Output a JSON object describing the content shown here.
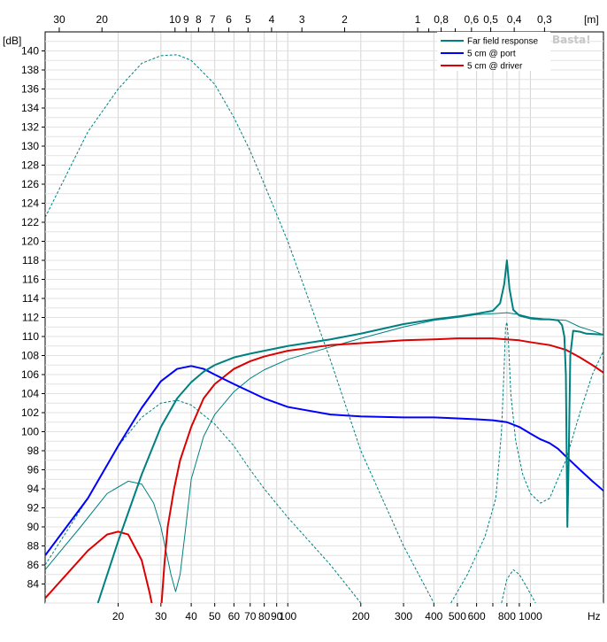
{
  "chart_data": {
    "type": "line",
    "y_unit_label": "[dB]",
    "x_unit_label": "Hz",
    "top_unit_label": "[m]",
    "watermark": "Basta!",
    "xscale": "log",
    "xlim": [
      10,
      2000
    ],
    "ylim": [
      82,
      142
    ],
    "grid": true,
    "legend_placement": "top-right",
    "x_ticks": [
      {
        "v": 20,
        "label": "20"
      },
      {
        "v": 30,
        "label": "30"
      },
      {
        "v": 40,
        "label": "40"
      },
      {
        "v": 50,
        "label": "50"
      },
      {
        "v": 60,
        "label": "60"
      },
      {
        "v": 70,
        "label": "70"
      },
      {
        "v": 80,
        "label": "80"
      },
      {
        "v": 90,
        "label": "90"
      },
      {
        "v": 100,
        "label": "100"
      },
      {
        "v": 200,
        "label": "200"
      },
      {
        "v": 300,
        "label": "300"
      },
      {
        "v": 400,
        "label": "400"
      },
      {
        "v": 500,
        "label": "500"
      },
      {
        "v": 600,
        "label": "600"
      },
      {
        "v": 800,
        "label": "800"
      },
      {
        "v": 1000,
        "label": "1000"
      }
    ],
    "top_ticks": [
      {
        "m": 30,
        "label": "30"
      },
      {
        "m": 20,
        "label": "20"
      },
      {
        "m": 10,
        "label": "10"
      },
      {
        "m": 9,
        "label": "9"
      },
      {
        "m": 8,
        "label": "8"
      },
      {
        "m": 7,
        "label": "7"
      },
      {
        "m": 6,
        "label": "6"
      },
      {
        "m": 5,
        "label": "5"
      },
      {
        "m": 4,
        "label": "4"
      },
      {
        "m": 3,
        "label": "3"
      },
      {
        "m": 2,
        "label": "2"
      },
      {
        "m": 1,
        "label": "1"
      },
      {
        "m": 0.8,
        "label": "0,8"
      },
      {
        "m": 0.6,
        "label": "0,6"
      },
      {
        "m": 0.5,
        "label": "0,5"
      },
      {
        "m": 0.4,
        "label": "0,4"
      },
      {
        "m": 0.3,
        "label": "0,3"
      }
    ],
    "y_ticks": [
      84,
      86,
      88,
      90,
      92,
      94,
      96,
      98,
      100,
      102,
      104,
      106,
      108,
      110,
      112,
      114,
      116,
      118,
      120,
      122,
      124,
      126,
      128,
      130,
      132,
      134,
      136,
      138,
      140
    ],
    "series": [
      {
        "name": "Far field response",
        "color": "#008080",
        "width": 2,
        "legend": true,
        "points": [
          [
            16.5,
            82
          ],
          [
            20,
            88.5
          ],
          [
            25,
            95.5
          ],
          [
            30,
            100.5
          ],
          [
            35,
            103.5
          ],
          [
            40,
            105.2
          ],
          [
            45,
            106.3
          ],
          [
            50,
            107
          ],
          [
            60,
            107.8
          ],
          [
            70,
            108.2
          ],
          [
            80,
            108.5
          ],
          [
            100,
            109
          ],
          [
            150,
            109.7
          ],
          [
            200,
            110.3
          ],
          [
            300,
            111.3
          ],
          [
            400,
            111.8
          ],
          [
            500,
            112.1
          ],
          [
            600,
            112.4
          ],
          [
            700,
            112.7
          ],
          [
            750,
            113.5
          ],
          [
            780,
            115.5
          ],
          [
            800,
            118
          ],
          [
            820,
            115
          ],
          [
            850,
            112.8
          ],
          [
            900,
            112.2
          ],
          [
            1000,
            111.9
          ],
          [
            1100,
            111.8
          ],
          [
            1200,
            111.8
          ],
          [
            1300,
            111.7
          ],
          [
            1350,
            111.2
          ],
          [
            1380,
            110
          ],
          [
            1400,
            106
          ],
          [
            1420,
            90
          ],
          [
            1440,
            98
          ],
          [
            1460,
            108
          ],
          [
            1500,
            110.6
          ],
          [
            1600,
            110.5
          ],
          [
            1700,
            110.3
          ],
          [
            2000,
            110.2
          ]
        ]
      },
      {
        "name": "5 cm @ port",
        "color": "#0000ff",
        "width": 2,
        "legend": true,
        "points": [
          [
            10,
            87
          ],
          [
            15,
            93
          ],
          [
            20,
            98.5
          ],
          [
            25,
            102.5
          ],
          [
            30,
            105.3
          ],
          [
            35,
            106.6
          ],
          [
            40,
            106.9
          ],
          [
            45,
            106.6
          ],
          [
            50,
            106
          ],
          [
            60,
            105
          ],
          [
            70,
            104.2
          ],
          [
            80,
            103.5
          ],
          [
            100,
            102.6
          ],
          [
            150,
            101.8
          ],
          [
            200,
            101.6
          ],
          [
            300,
            101.5
          ],
          [
            400,
            101.5
          ],
          [
            500,
            101.4
          ],
          [
            600,
            101.3
          ],
          [
            700,
            101.2
          ],
          [
            800,
            101
          ],
          [
            900,
            100.5
          ],
          [
            1000,
            99.8
          ],
          [
            1100,
            99.2
          ],
          [
            1200,
            98.8
          ],
          [
            1300,
            98.2
          ],
          [
            1400,
            97.4
          ],
          [
            1600,
            96
          ],
          [
            1800,
            94.8
          ],
          [
            2000,
            93.8
          ]
        ]
      },
      {
        "name": "5 cm @ driver",
        "color": "#dd0000",
        "width": 2,
        "legend": true,
        "points": [
          [
            10,
            82.5
          ],
          [
            15,
            87.5
          ],
          [
            18,
            89.2
          ],
          [
            20,
            89.5
          ],
          [
            22,
            89.2
          ],
          [
            25,
            86.5
          ],
          [
            27,
            83
          ],
          [
            28,
            81
          ]
        ]
      },
      {
        "name": "5 cm @ driver",
        "color": "#dd0000",
        "width": 2,
        "legend": false,
        "points": [
          [
            30,
            81
          ],
          [
            31,
            86
          ],
          [
            32,
            90
          ],
          [
            34,
            94
          ],
          [
            36,
            97
          ],
          [
            40,
            100.5
          ],
          [
            45,
            103.5
          ],
          [
            50,
            105
          ],
          [
            60,
            106.6
          ],
          [
            70,
            107.4
          ],
          [
            80,
            107.9
          ],
          [
            100,
            108.5
          ],
          [
            150,
            109.1
          ],
          [
            200,
            109.3
          ],
          [
            300,
            109.6
          ],
          [
            400,
            109.7
          ],
          [
            500,
            109.8
          ],
          [
            600,
            109.8
          ],
          [
            700,
            109.8
          ],
          [
            800,
            109.7
          ],
          [
            900,
            109.6
          ],
          [
            1000,
            109.4
          ],
          [
            1200,
            109.1
          ],
          [
            1400,
            108.6
          ],
          [
            1600,
            107.8
          ],
          [
            1800,
            107
          ],
          [
            2000,
            106.2
          ]
        ]
      },
      {
        "name": "",
        "color": "#008080",
        "width": 1,
        "legend": false,
        "points": [
          [
            10,
            85.5
          ],
          [
            14,
            90
          ],
          [
            18,
            93.5
          ],
          [
            22,
            94.8
          ],
          [
            25,
            94.5
          ],
          [
            28,
            92.5
          ],
          [
            30,
            90
          ],
          [
            33,
            85
          ],
          [
            34.5,
            83.2
          ],
          [
            36,
            85
          ],
          [
            38,
            90
          ],
          [
            40,
            95
          ],
          [
            45,
            99.5
          ],
          [
            50,
            101.8
          ],
          [
            60,
            104.2
          ],
          [
            70,
            105.6
          ],
          [
            80,
            106.5
          ],
          [
            100,
            107.6
          ],
          [
            150,
            108.9
          ],
          [
            200,
            109.8
          ],
          [
            300,
            111
          ],
          [
            400,
            111.7
          ],
          [
            500,
            112
          ],
          [
            600,
            112.3
          ],
          [
            700,
            112.4
          ],
          [
            800,
            112.5
          ],
          [
            900,
            112.3
          ],
          [
            1000,
            112
          ],
          [
            1200,
            111.8
          ],
          [
            1400,
            111.7
          ],
          [
            1600,
            111
          ],
          [
            1800,
            110.6
          ],
          [
            2000,
            110.2
          ]
        ]
      },
      {
        "name": "",
        "color": "#008080",
        "width": 1,
        "dash": "3,2",
        "legend": false,
        "points": [
          [
            10,
            122.5
          ],
          [
            15,
            131.5
          ],
          [
            20,
            136
          ],
          [
            25,
            138.7
          ],
          [
            30,
            139.5
          ],
          [
            35,
            139.6
          ],
          [
            40,
            139
          ],
          [
            50,
            136.5
          ],
          [
            60,
            133
          ],
          [
            70,
            129.5
          ],
          [
            80,
            126
          ],
          [
            100,
            120
          ],
          [
            150,
            107.5
          ],
          [
            200,
            98
          ],
          [
            300,
            88
          ],
          [
            400,
            82
          ]
        ]
      },
      {
        "name": "",
        "color": "#008080",
        "width": 1,
        "dash": "3,2",
        "legend": false,
        "points": [
          [
            10,
            86
          ],
          [
            15,
            93
          ],
          [
            20,
            98.5
          ],
          [
            25,
            101.5
          ],
          [
            30,
            103
          ],
          [
            35,
            103.3
          ],
          [
            40,
            102.8
          ],
          [
            50,
            100.8
          ],
          [
            60,
            98.5
          ],
          [
            70,
            96
          ],
          [
            80,
            94
          ],
          [
            100,
            91
          ],
          [
            150,
            86
          ],
          [
            200,
            82
          ]
        ]
      },
      {
        "name": "",
        "color": "#008080",
        "width": 1,
        "dash": "3,2",
        "legend": false,
        "points": [
          [
            470,
            82
          ],
          [
            550,
            85
          ],
          [
            650,
            89
          ],
          [
            720,
            93
          ],
          [
            760,
            100
          ],
          [
            780,
            107
          ],
          [
            790,
            111
          ],
          [
            800,
            111.5
          ],
          [
            810,
            110
          ],
          [
            830,
            104
          ],
          [
            870,
            99
          ],
          [
            930,
            95.5
          ],
          [
            1000,
            93.5
          ],
          [
            1100,
            92.5
          ],
          [
            1200,
            93
          ],
          [
            1400,
            97
          ],
          [
            1600,
            102
          ],
          [
            1800,
            106
          ],
          [
            2000,
            108.5
          ]
        ]
      },
      {
        "name": "",
        "color": "#008080",
        "width": 1,
        "dash": "3,2",
        "legend": false,
        "points": [
          [
            760,
            82
          ],
          [
            800,
            84.5
          ],
          [
            850,
            85.5
          ],
          [
            900,
            85
          ],
          [
            950,
            84
          ],
          [
            1050,
            82
          ]
        ]
      }
    ]
  }
}
